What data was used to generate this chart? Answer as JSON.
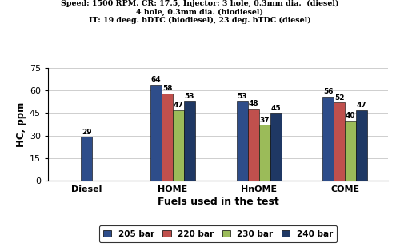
{
  "title_lines": [
    "Speed: 1500 RPM. CR: 17.5, Injector: 3 hole, 0.3mm dia.  (diesel)",
    "4 hole, 0.3mm dia. (biodiesel)",
    "IT: 19 deeg. bDTC (biodiesel), 23 deg. bTDC (diesel)"
  ],
  "categories": [
    "Diesel",
    "HOME",
    "HnOME",
    "COME"
  ],
  "values": {
    "205 bar": [
      29,
      64,
      53,
      56
    ],
    "220 bar": [
      null,
      58,
      48,
      52
    ],
    "230 bar": [
      null,
      47,
      37,
      40
    ],
    "240 bar": [
      null,
      53,
      45,
      47
    ]
  },
  "bar_colors": [
    "#2E4D8A",
    "#C0504D",
    "#9BBB59",
    "#1F3864"
  ],
  "legend_labels": [
    "205 bar",
    "220 bar",
    "230 bar",
    "240 bar"
  ],
  "xlabel": "Fuels used in the test",
  "ylabel": "HC, ppm",
  "ylim": [
    0,
    75
  ],
  "yticks": [
    0,
    15,
    30,
    45,
    60,
    75
  ],
  "background_color": "#FFFFFF",
  "grid_color": "#BBBBBB"
}
